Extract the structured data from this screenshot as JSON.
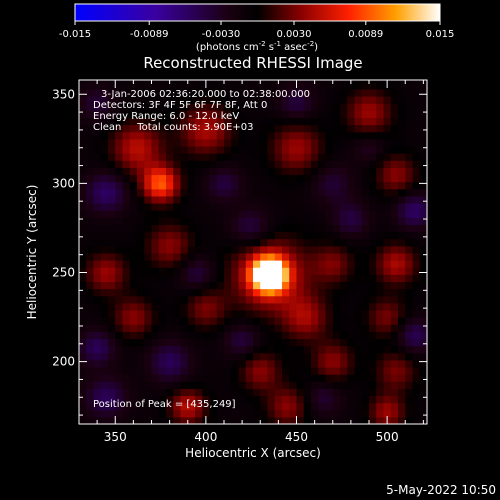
{
  "chart_data": {
    "type": "heatmap",
    "title": "Reconstructed RHESSI Image",
    "xlabel": "Heliocentric X (arcsec)",
    "ylabel": "Heliocentric Y (arcsec)",
    "xlim": [
      330,
      522
    ],
    "ylim": [
      165,
      358
    ],
    "x_ticks": [
      350,
      400,
      450,
      500
    ],
    "y_ticks": [
      200,
      250,
      300,
      350
    ],
    "colorbar": {
      "range": [
        -0.015,
        0.015
      ],
      "ticks": [
        "-0.015",
        "-0.0089",
        "-0.0030",
        "0.0030",
        "0.0089",
        "0.015"
      ],
      "unit_prefix": "(photons cm",
      "unit_exp1": "-2",
      "unit_mid": " s",
      "unit_exp2": "-1",
      "unit_mid2": " asec",
      "unit_exp3": "-2",
      "unit_suffix": ")"
    },
    "annotations": [
      "3-Jan-2006 02:36:20.000 to 02:38:00.000",
      "Detectors: 3F 4F 5F 6F 7F 8F, Att 0",
      "Energy Range: 6.0 - 12.0 keV",
      "Clean     Total counts: 3.90E+03"
    ],
    "peak_label": "Position of Peak = [435,249]",
    "peak": {
      "x": 435,
      "y": 249,
      "value": 0.015
    },
    "blobs": [
      {
        "x": 435,
        "y": 249,
        "sigma": 6,
        "amp": 0.022
      },
      {
        "x": 435,
        "y": 249,
        "sigma": 14,
        "amp": 0.008
      },
      {
        "x": 375,
        "y": 300,
        "sigma": 7,
        "amp": 0.01
      },
      {
        "x": 362,
        "y": 320,
        "sigma": 10,
        "amp": 0.006
      },
      {
        "x": 400,
        "y": 330,
        "sigma": 10,
        "amp": 0.0055
      },
      {
        "x": 450,
        "y": 320,
        "sigma": 10,
        "amp": 0.005
      },
      {
        "x": 490,
        "y": 340,
        "sigma": 9,
        "amp": 0.005
      },
      {
        "x": 470,
        "y": 300,
        "sigma": 8,
        "amp": -0.003
      },
      {
        "x": 505,
        "y": 305,
        "sigma": 8,
        "amp": 0.0045
      },
      {
        "x": 345,
        "y": 250,
        "sigma": 8,
        "amp": 0.005
      },
      {
        "x": 380,
        "y": 265,
        "sigma": 9,
        "amp": 0.0045
      },
      {
        "x": 470,
        "y": 255,
        "sigma": 8,
        "amp": 0.004
      },
      {
        "x": 505,
        "y": 255,
        "sigma": 8,
        "amp": 0.0055
      },
      {
        "x": 360,
        "y": 225,
        "sigma": 8,
        "amp": 0.0045
      },
      {
        "x": 400,
        "y": 230,
        "sigma": 8,
        "amp": 0.004
      },
      {
        "x": 455,
        "y": 225,
        "sigma": 9,
        "amp": 0.005
      },
      {
        "x": 500,
        "y": 225,
        "sigma": 8,
        "amp": 0.004
      },
      {
        "x": 380,
        "y": 200,
        "sigma": 8,
        "amp": -0.0045
      },
      {
        "x": 430,
        "y": 195,
        "sigma": 8,
        "amp": 0.0045
      },
      {
        "x": 470,
        "y": 200,
        "sigma": 8,
        "amp": 0.0045
      },
      {
        "x": 505,
        "y": 195,
        "sigma": 8,
        "amp": 0.004
      },
      {
        "x": 390,
        "y": 175,
        "sigma": 7,
        "amp": 0.006
      },
      {
        "x": 445,
        "y": 175,
        "sigma": 8,
        "amp": 0.0045
      },
      {
        "x": 500,
        "y": 172,
        "sigma": 7,
        "amp": 0.005
      },
      {
        "x": 345,
        "y": 180,
        "sigma": 8,
        "amp": -0.0045
      },
      {
        "x": 345,
        "y": 295,
        "sigma": 8,
        "amp": -0.005
      },
      {
        "x": 425,
        "y": 275,
        "sigma": 8,
        "amp": -0.004
      },
      {
        "x": 410,
        "y": 300,
        "sigma": 7,
        "amp": -0.0035
      },
      {
        "x": 395,
        "y": 250,
        "sigma": 7,
        "amp": -0.0035
      },
      {
        "x": 340,
        "y": 208,
        "sigma": 7,
        "amp": -0.0045
      },
      {
        "x": 480,
        "y": 280,
        "sigma": 7,
        "amp": -0.0035
      },
      {
        "x": 515,
        "y": 285,
        "sigma": 7,
        "amp": -0.005
      },
      {
        "x": 450,
        "y": 345,
        "sigma": 7,
        "amp": -0.0035
      },
      {
        "x": 340,
        "y": 345,
        "sigma": 7,
        "amp": -0.003
      },
      {
        "x": 515,
        "y": 215,
        "sigma": 7,
        "amp": -0.0045
      },
      {
        "x": 420,
        "y": 212,
        "sigma": 7,
        "amp": -0.0035
      },
      {
        "x": 465,
        "y": 180,
        "sigma": 7,
        "amp": -0.003
      },
      {
        "x": 490,
        "y": 320,
        "sigma": 6,
        "amp": -0.0025
      }
    ]
  },
  "timestamp": "5-May-2022 10:50"
}
